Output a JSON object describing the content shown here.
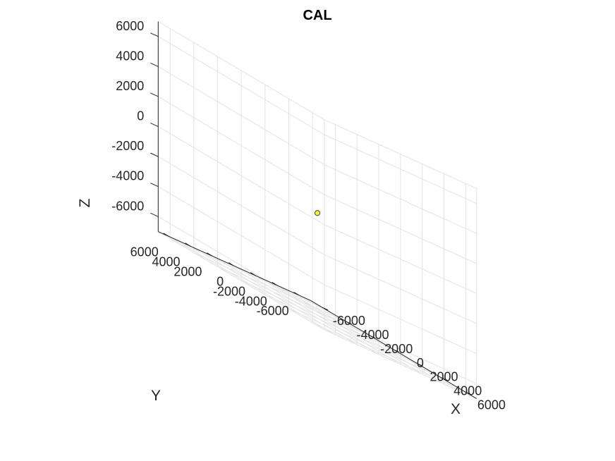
{
  "chart_data": {
    "type": "scatter",
    "title": "CAL",
    "xlabel": "X",
    "ylabel": "Y",
    "zlabel": "Z",
    "xlim": [
      -7000,
      7000
    ],
    "ylim": [
      -7000,
      7000
    ],
    "zlim": [
      -7000,
      7000
    ],
    "xticks": [
      -6000,
      -4000,
      -2000,
      0,
      2000,
      4000,
      6000
    ],
    "yticks": [
      -6000,
      -4000,
      -2000,
      0,
      2000,
      4000,
      6000
    ],
    "zticks": [
      -6000,
      -4000,
      -2000,
      0,
      2000,
      4000,
      6000
    ],
    "xtick_labels": [
      "-6000",
      "-4000",
      "-2000",
      "0",
      "2000",
      "4000",
      "6000"
    ],
    "ytick_labels": [
      "-6000",
      "-4000",
      "-2000",
      "0",
      "2000",
      "4000",
      "6000"
    ],
    "ztick_labels": [
      "-6000",
      "-4000",
      "-2000",
      "0",
      "2000",
      "4000",
      "6000"
    ],
    "grid": true,
    "points": [
      {
        "x": 0,
        "y": 0,
        "z": -200
      }
    ],
    "colors": {
      "point_fill": "#f5f032",
      "point_edge": "#404040",
      "grid": "#e3e3e3",
      "axis": "#262626"
    }
  }
}
